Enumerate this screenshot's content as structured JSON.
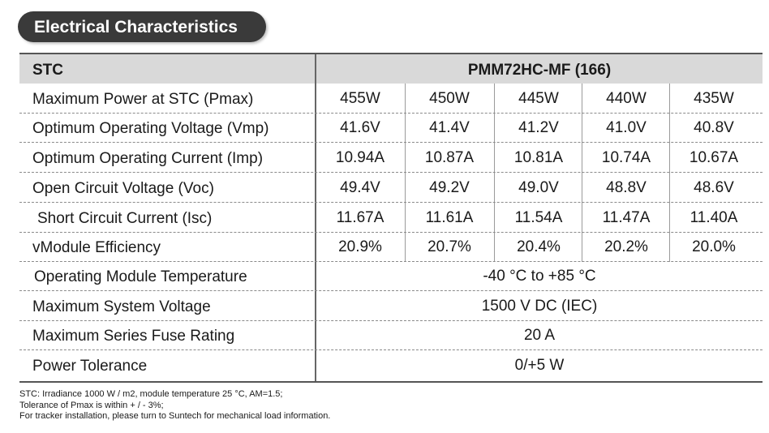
{
  "title": "Electrical Characteristics",
  "table": {
    "corner_label": "STC",
    "model_header": "PMM72HC-MF (166)",
    "rows": [
      {
        "label": "Maximum Power at STC (Pmax)",
        "values": [
          "455W",
          "450W",
          "445W",
          "440W",
          "435W"
        ]
      },
      {
        "label": "Optimum Operating Voltage (Vmp)",
        "values": [
          "41.6V",
          "41.4V",
          "41.2V",
          "41.0V",
          "40.8V"
        ]
      },
      {
        "label": "Optimum Operating Current (Imp)",
        "values": [
          "10.94A",
          "10.87A",
          "10.81A",
          "10.74A",
          "10.67A"
        ]
      },
      {
        "label": "Open Circuit Voltage (Voc)",
        "values": [
          "49.4V",
          "49.2V",
          "49.0V",
          "48.8V",
          "48.6V"
        ]
      },
      {
        "label": "Short Circuit Current (Isc)",
        "values": [
          "11.67A",
          "11.61A",
          "11.54A",
          "11.47A",
          "11.40A"
        ]
      },
      {
        "label": "vModule Efficiency",
        "values": [
          "20.9%",
          "20.7%",
          "20.4%",
          "20.2%",
          "20.0%"
        ]
      },
      {
        "label": "Operating Module Temperature",
        "span_value": "-40 °C to +85 °C"
      },
      {
        "label": "Maximum System Voltage",
        "span_value": "1500 V DC (IEC)"
      },
      {
        "label": "Maximum Series Fuse Rating",
        "span_value": "20 A"
      },
      {
        "label": "Power Tolerance",
        "span_value": "0/+5 W"
      }
    ]
  },
  "notes": [
    "STC: Irradiance 1000 W / m2, module temperature 25 °C, AM=1.5;",
    "Tolerance of Pmax is within  + / - 3%;",
    "For tracker installation, please turn to Suntech for mechanical load information."
  ]
}
